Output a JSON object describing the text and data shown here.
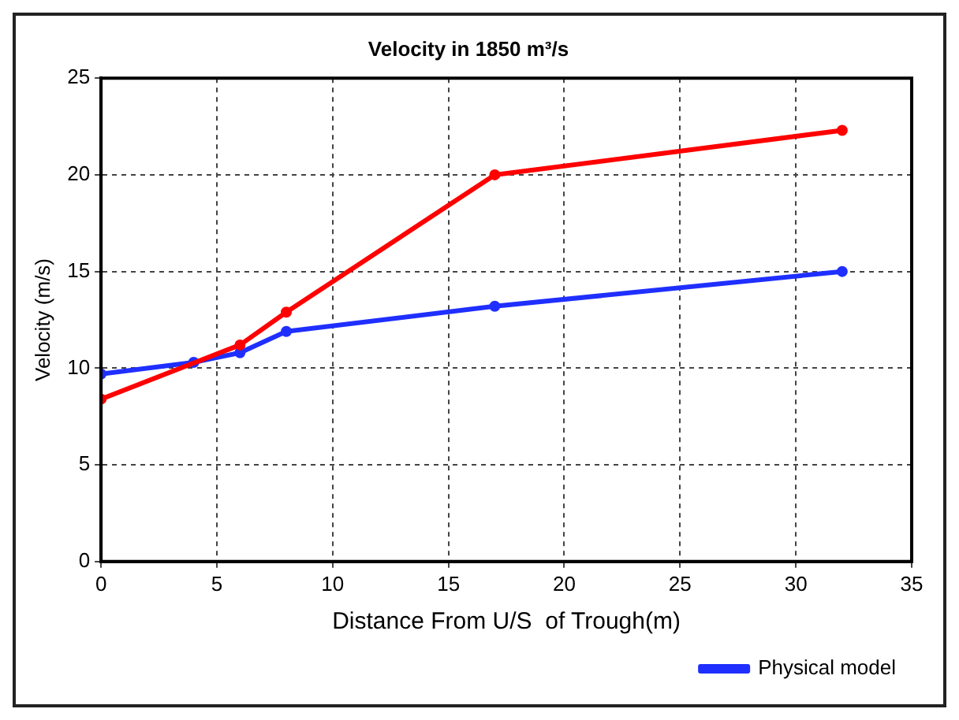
{
  "chart_data": {
    "type": "line",
    "title": "Velocity in 1850 m³/s",
    "xlabel": "Distance From U/S  of Trough(m)",
    "ylabel": "Velocity (m/s)",
    "series": [
      {
        "color": "#ff0000",
        "x": [
          0,
          6,
          8,
          17,
          32
        ],
        "values": [
          8.4,
          11.2,
          12.9,
          20,
          22.3
        ]
      },
      {
        "name": "Physical model",
        "color": "#1f2fff",
        "x": [
          0,
          4,
          6,
          8,
          17,
          32
        ],
        "values": [
          9.7,
          10.3,
          10.8,
          11.9,
          13.2,
          15.0
        ]
      }
    ],
    "xlim": [
      0,
      35
    ],
    "xticks": [
      0,
      5,
      10,
      15,
      20,
      25,
      30,
      35
    ],
    "ylim": [
      0,
      25
    ],
    "yticks": [
      0,
      5,
      10,
      15,
      20,
      25
    ],
    "grid": true,
    "legend": "bottom right",
    "marker": "circle",
    "line_style": "solid"
  }
}
